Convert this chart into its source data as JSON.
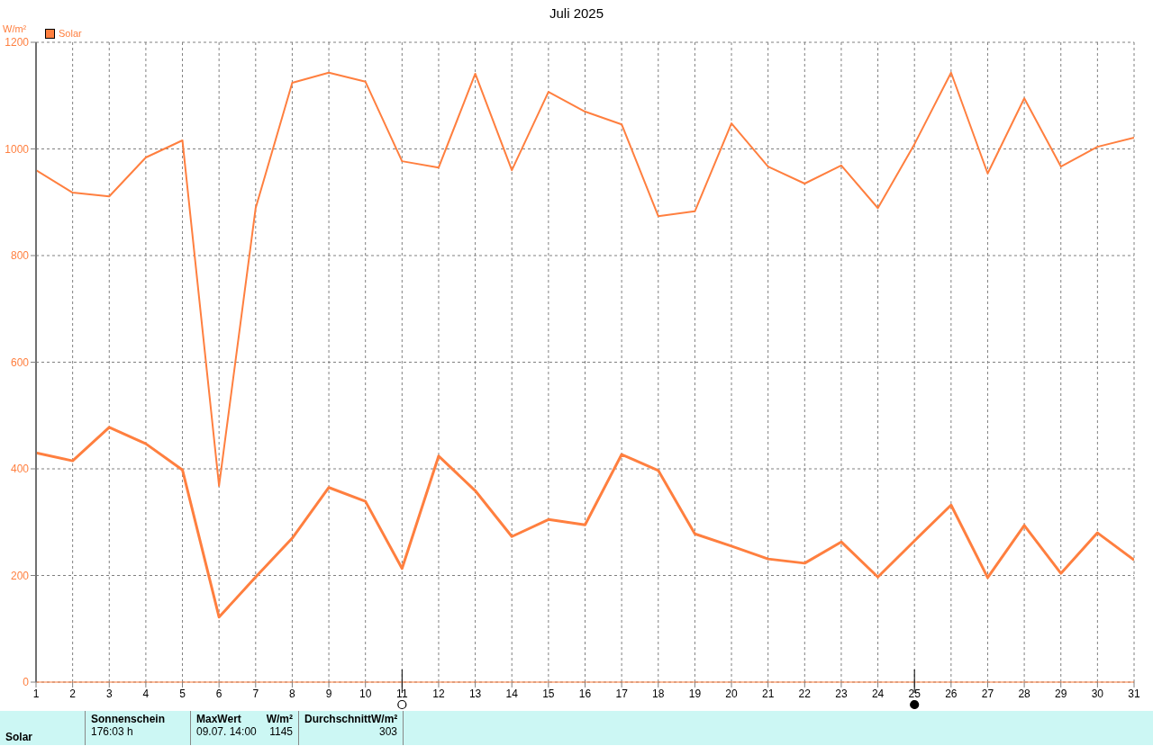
{
  "chart_data": {
    "type": "line",
    "title": "Juli 2025",
    "ylabel": "W/m²",
    "x": [
      1,
      2,
      3,
      4,
      5,
      6,
      7,
      8,
      9,
      10,
      11,
      12,
      13,
      14,
      15,
      16,
      17,
      18,
      19,
      20,
      21,
      22,
      23,
      24,
      25,
      26,
      27,
      28,
      29,
      30,
      31
    ],
    "series": [
      {
        "name": "Solar",
        "color": "#ff7f3f",
        "values": [
          960,
          918,
          911,
          984,
          1016,
          368,
          889,
          1124,
          1143,
          1126,
          977,
          965,
          1141,
          960,
          1107,
          1070,
          1046,
          874,
          883,
          1048,
          967,
          935,
          969,
          889,
          1009,
          1143,
          954,
          1095,
          967,
          1004,
          1021
        ]
      },
      {
        "color": "#ff7f3f",
        "values": [
          430,
          415,
          478,
          447,
          398,
          122,
          197,
          270,
          365,
          339,
          213,
          424,
          359,
          273,
          305,
          295,
          427,
          397,
          278,
          255,
          231,
          223,
          263,
          197,
          265,
          332,
          196,
          294,
          204,
          280,
          229
        ]
      }
    ],
    "xlim": [
      1,
      31
    ],
    "xticks": [
      1,
      2,
      3,
      4,
      5,
      6,
      7,
      8,
      9,
      10,
      11,
      12,
      13,
      14,
      15,
      16,
      17,
      18,
      19,
      20,
      21,
      22,
      23,
      24,
      25,
      26,
      27,
      28,
      29,
      30,
      31
    ],
    "ylim": [
      0,
      1200
    ],
    "yticks": [
      0,
      200,
      400,
      600,
      800,
      1000,
      1200
    ],
    "grid": true,
    "legend": "top left",
    "marker": "none",
    "line_style": "solid",
    "annotations": [
      "Solar",
      "Sonnenschein",
      "176:03 h",
      "MaxWert",
      "W/m²",
      "09.07.  14:00",
      "1145",
      "Durchschnitt",
      "W/m²",
      "303"
    ]
  }
}
